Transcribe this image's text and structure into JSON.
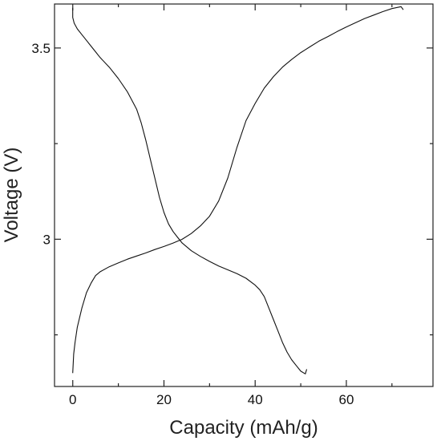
{
  "chart_data": {
    "type": "line",
    "title": "",
    "xlabel": "Capacity (mAh/g)",
    "ylabel": "Voltage (V)",
    "xlim": [
      -4,
      79
    ],
    "ylim": [
      2.615,
      3.615
    ],
    "x_ticks": [
      0,
      20,
      40,
      60
    ],
    "x_tick_labels": [
      "0",
      "20",
      "40",
      "60"
    ],
    "y_ticks": [
      3.0,
      3.5
    ],
    "y_tick_labels": [
      "3",
      "3.5"
    ],
    "y_minor_ticks": [
      2.75,
      3.25
    ],
    "x_minor_ticks": [
      10,
      30,
      50,
      70
    ],
    "grid": false,
    "legend": "none",
    "line_color": "#111111",
    "series": [
      {
        "x": [
          0,
          0.2,
          0.5,
          1,
          2,
          3,
          4,
          5,
          6,
          8,
          10,
          12,
          14,
          16,
          18,
          20,
          22,
          24,
          26,
          28,
          30,
          32,
          34,
          36,
          38,
          40,
          42,
          44,
          46,
          48,
          50,
          52,
          54,
          56,
          58,
          60,
          62,
          64,
          66,
          68,
          70,
          72,
          72.5
        ],
        "y": [
          2.65,
          2.7,
          2.73,
          2.77,
          2.82,
          2.86,
          2.885,
          2.905,
          2.915,
          2.928,
          2.938,
          2.948,
          2.956,
          2.964,
          2.973,
          2.981,
          2.99,
          3.0,
          3.015,
          3.035,
          3.06,
          3.1,
          3.16,
          3.24,
          3.31,
          3.355,
          3.395,
          3.425,
          3.45,
          3.47,
          3.488,
          3.503,
          3.518,
          3.53,
          3.543,
          3.555,
          3.566,
          3.577,
          3.586,
          3.595,
          3.603,
          3.608,
          3.6
        ]
      },
      {
        "x": [
          0,
          0,
          0.3,
          1,
          2,
          3,
          4,
          5,
          6,
          8,
          10,
          12,
          14,
          15,
          16,
          17,
          18,
          19,
          20,
          21,
          22,
          23,
          24,
          26,
          28,
          30,
          32,
          34,
          36,
          38,
          40,
          41,
          42,
          43,
          44,
          45,
          46,
          47,
          48,
          49,
          50,
          51,
          51.3
        ],
        "y": [
          3.605,
          3.58,
          3.565,
          3.55,
          3.535,
          3.52,
          3.505,
          3.49,
          3.475,
          3.45,
          3.42,
          3.385,
          3.34,
          3.305,
          3.26,
          3.21,
          3.16,
          3.11,
          3.07,
          3.04,
          3.02,
          3.005,
          2.99,
          2.97,
          2.955,
          2.942,
          2.93,
          2.92,
          2.91,
          2.898,
          2.88,
          2.868,
          2.85,
          2.82,
          2.79,
          2.76,
          2.73,
          2.705,
          2.685,
          2.67,
          2.655,
          2.648,
          2.66
        ]
      }
    ]
  }
}
